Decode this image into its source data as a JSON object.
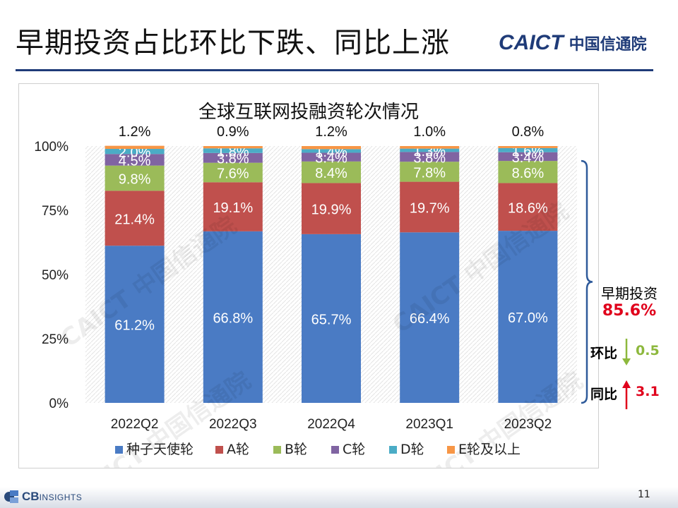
{
  "slide": {
    "title": "早期投资占比环比下跌、同比上涨",
    "logo_en": "CAICT",
    "logo_cn": "中国信通院",
    "footer_logo": "CB",
    "footer_logo_sub": "INSIGHTS",
    "page_number": "11",
    "watermark": "CAICT 中国信通院"
  },
  "side_panel": {
    "label": "早期投资",
    "value": "85.6%",
    "qoq_label": "环比",
    "qoq_value": "0.5",
    "yoy_label": "同比",
    "yoy_value": "3.1",
    "colors": {
      "value": "#e0001b",
      "qoq": "#8db83d",
      "yoy": "#e0001b"
    }
  },
  "chart_data": {
    "type": "bar",
    "stacked": true,
    "title": "全球互联网投融资轮次情况",
    "categories": [
      "2022Q2",
      "2022Q3",
      "2022Q4",
      "2023Q1",
      "2023Q2"
    ],
    "ylim": [
      0,
      100
    ],
    "yticks": [
      "0%",
      "25%",
      "50%",
      "75%",
      "100%"
    ],
    "legend_position": "bottom",
    "series": [
      {
        "name": "种子天使轮",
        "color": "#4a7bc4",
        "values": [
          61.2,
          66.8,
          65.7,
          66.4,
          67.0
        ],
        "labels": [
          "61.2%",
          "66.8%",
          "65.7%",
          "66.4%",
          "67.0%"
        ]
      },
      {
        "name": "A轮",
        "color": "#c0504d",
        "values": [
          21.4,
          19.1,
          19.9,
          19.7,
          18.6
        ],
        "labels": [
          "21.4%",
          "19.1%",
          "19.9%",
          "19.7%",
          "18.6%"
        ]
      },
      {
        "name": "B轮",
        "color": "#9bbb59",
        "values": [
          9.8,
          7.6,
          8.4,
          7.8,
          8.6
        ],
        "labels": [
          "9.8%",
          "7.6%",
          "8.4%",
          "7.8%",
          "8.6%"
        ]
      },
      {
        "name": "C轮",
        "color": "#8064a2",
        "values": [
          4.5,
          3.8,
          3.4,
          3.8,
          3.4
        ],
        "labels": [
          "4.5%",
          "3.8%",
          "3.4%",
          "3.8%",
          "3.4%"
        ]
      },
      {
        "name": "D轮",
        "color": "#4bacc6",
        "values": [
          2.0,
          1.8,
          1.4,
          1.3,
          1.6
        ],
        "labels": [
          "2.0%",
          "1.8%",
          "1.4%",
          "1.3%",
          "1.6%"
        ]
      },
      {
        "name": "E轮及以上",
        "color": "#f79646",
        "values": [
          1.2,
          0.9,
          1.2,
          1.0,
          0.8
        ],
        "labels": [
          "1.2%",
          "0.9%",
          "1.2%",
          "1.0%",
          "0.8%"
        ]
      }
    ]
  }
}
